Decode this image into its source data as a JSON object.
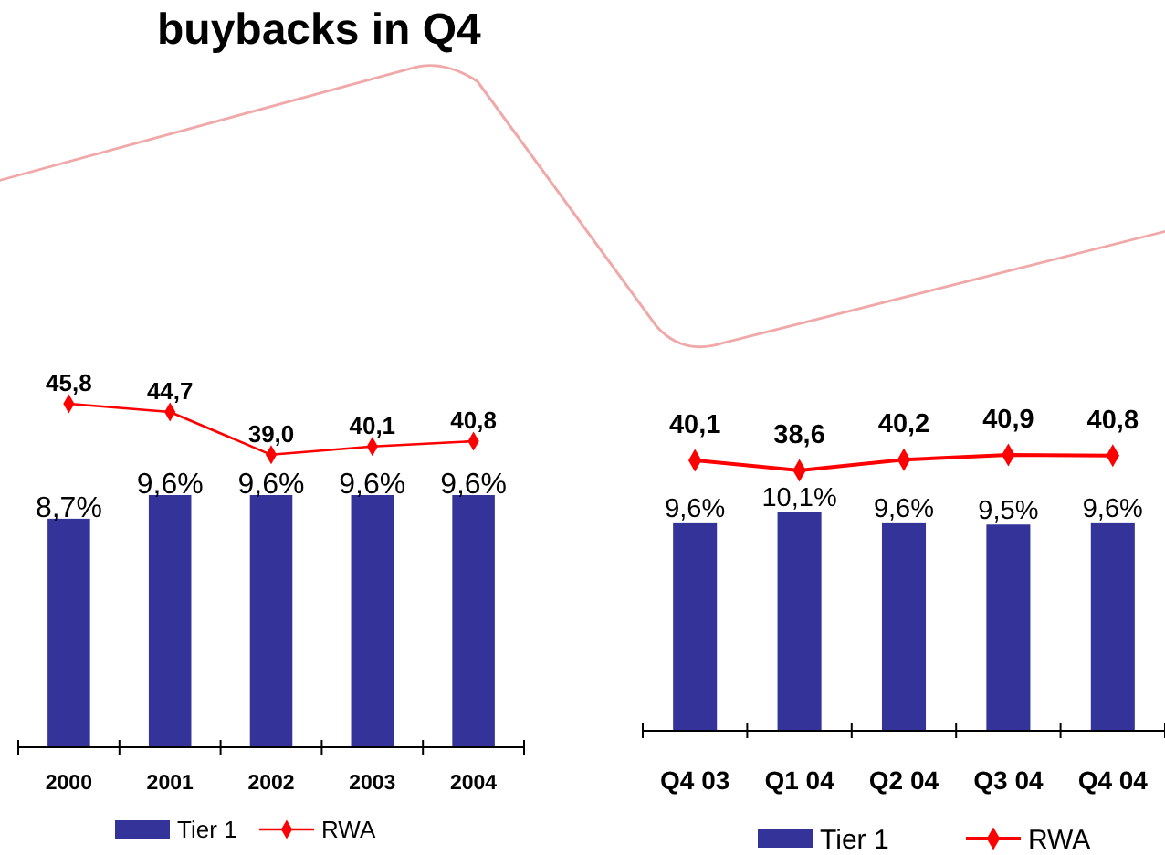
{
  "chart_data": [
    {
      "type": "other",
      "title": "buybacks in Q4"
    },
    {
      "type": "bar",
      "categories": [
        "2000",
        "2001",
        "2002",
        "2003",
        "2004"
      ],
      "series": [
        {
          "name": "Tier 1",
          "color": "#333399",
          "values": [
            8.7,
            9.6,
            9.6,
            9.6,
            9.6
          ],
          "value_labels": [
            "8,7%",
            "9,6%",
            "9,6%",
            "9,6%",
            "9,6%"
          ]
        }
      ],
      "legend": "bottom"
    },
    {
      "type": "line",
      "categories": [
        null,
        null,
        null,
        null,
        null
      ],
      "series": [
        {
          "name": "RWA",
          "color": "#ff0000",
          "values": [
            45.8,
            44.7,
            39.0,
            40.1,
            40.8
          ],
          "value_labels": [
            "45,8",
            "44,7",
            "39,0",
            "40,1",
            "40,8"
          ]
        }
      ],
      "legend": "bottom",
      "marker": "diamond"
    },
    {
      "type": "bar",
      "categories": [
        "Q4 03",
        "Q1 04",
        "Q2 04",
        "Q3 04",
        "Q4 04"
      ],
      "series": [
        {
          "name": "Tier 1",
          "color": "#333399",
          "values": [
            9.6,
            10.1,
            9.6,
            9.5,
            9.6
          ],
          "value_labels": [
            "9,6%",
            "10,1%",
            "9,6%",
            "9,5%",
            "9,6%"
          ]
        }
      ],
      "legend": "bottom"
    },
    {
      "type": "line",
      "categories": [
        null,
        null,
        null,
        null,
        null
      ],
      "series": [
        {
          "name": "RWA",
          "color": "#ff0000",
          "values": [
            40.1,
            38.6,
            40.2,
            40.9,
            40.8
          ],
          "value_labels": [
            "40,1",
            "38,6",
            "40,2",
            "40,9",
            "40,8"
          ]
        }
      ],
      "legend": "bottom",
      "marker": "diamond"
    }
  ]
}
